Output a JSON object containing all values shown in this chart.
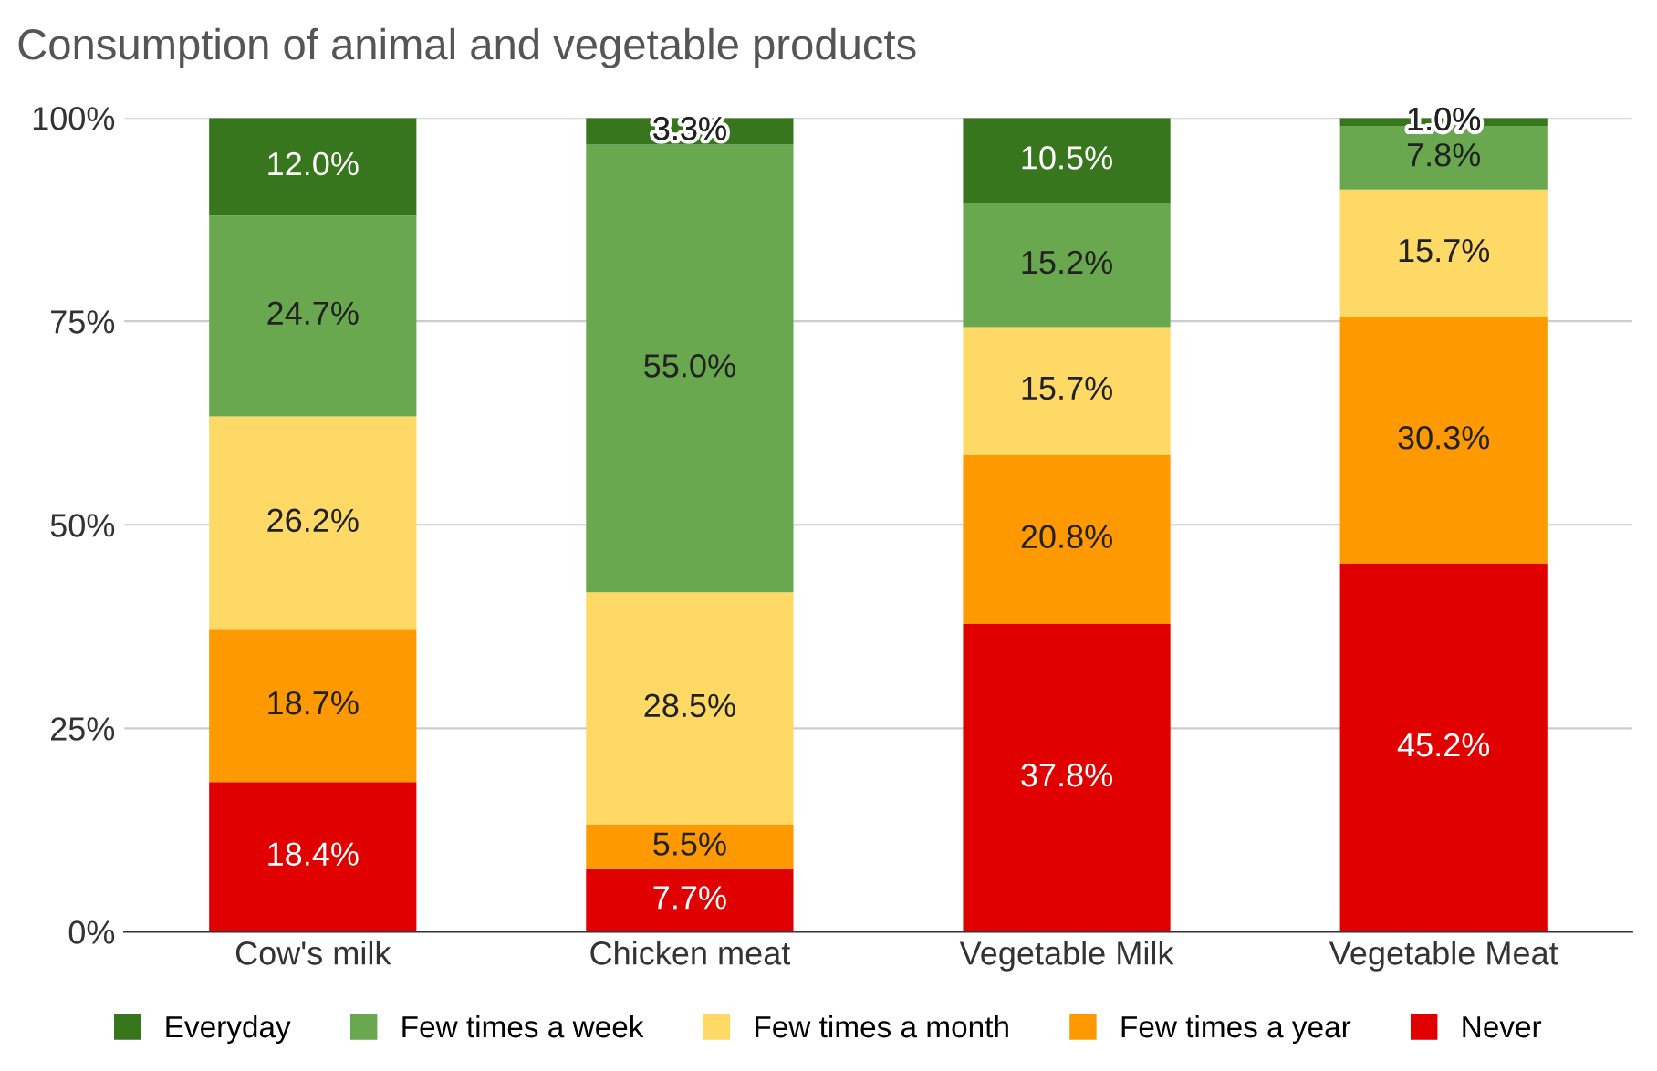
{
  "chart_data": {
    "type": "bar",
    "title": "Consumption of animal and vegetable products",
    "stacked": true,
    "categories": [
      "Cow's milk",
      "Chicken meat",
      "Vegetable Milk",
      "Vegetable Meat"
    ],
    "series": [
      {
        "name": "Never",
        "color": "#e00000",
        "values": [
          18.4,
          7.7,
          37.8,
          45.2
        ],
        "value_labels": [
          "18.4%",
          "7.7%",
          "37.8%",
          "45.2%"
        ]
      },
      {
        "name": "Few times a year",
        "color": "#ff9900",
        "values": [
          18.7,
          5.5,
          20.8,
          30.3
        ],
        "value_labels": [
          "18.7%",
          "5.5%",
          "20.8%",
          "30.3%"
        ]
      },
      {
        "name": "Few times a month",
        "color": "#ffd966",
        "values": [
          26.2,
          28.5,
          15.7,
          15.7
        ],
        "value_labels": [
          "26.2%",
          "28.5%",
          "15.7%",
          "15.7%"
        ]
      },
      {
        "name": "Few times a week",
        "color": "#6aa84f",
        "values": [
          24.7,
          55.0,
          15.2,
          7.8
        ],
        "value_labels": [
          "24.7%",
          "55.0%",
          "15.2%",
          "7.8%"
        ]
      },
      {
        "name": "Everyday",
        "color": "#38761d",
        "values": [
          12.0,
          3.3,
          10.5,
          1.0
        ],
        "value_labels": [
          "12.0%",
          "3.3%",
          "10.5%",
          "1.0%"
        ]
      }
    ],
    "ylim": [
      0,
      100
    ],
    "yticks": [
      {
        "value": 0,
        "label": "0%"
      },
      {
        "value": 25,
        "label": "25%"
      },
      {
        "value": 50,
        "label": "50%"
      },
      {
        "value": 75,
        "label": "75%"
      },
      {
        "value": 100,
        "label": "100%"
      }
    ],
    "grid": "y",
    "legend": "bottom"
  }
}
